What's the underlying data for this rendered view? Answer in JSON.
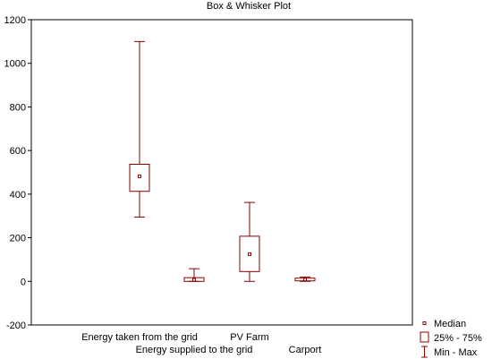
{
  "chart_data": {
    "type": "box",
    "title": "Box & Whisker Plot",
    "xlabel": "",
    "ylabel": "",
    "ylim": [
      -200,
      1200
    ],
    "yticks": [
      -200,
      0,
      200,
      400,
      600,
      800,
      1000,
      1200
    ],
    "grid": false,
    "legend_position": "bottom-right",
    "legend": {
      "median": "Median",
      "box": "25% - 75%",
      "whisker": "Min - Max"
    },
    "categories": [
      "Energy  taken from the grid",
      "Energy supplied to the grid",
      "PV Farm",
      "Carport"
    ],
    "boxes": [
      {
        "min": 295,
        "q1": 413,
        "median": 482,
        "q3": 537,
        "max": 1100
      },
      {
        "min": 0,
        "q1": 0,
        "median": 7,
        "q3": 17,
        "max": 58
      },
      {
        "min": 0,
        "q1": 45,
        "median": 125,
        "q3": 207,
        "max": 362
      },
      {
        "min": 0,
        "q1": 3,
        "median": 8,
        "q3": 14,
        "max": 20
      }
    ],
    "color": "#8b0000"
  }
}
